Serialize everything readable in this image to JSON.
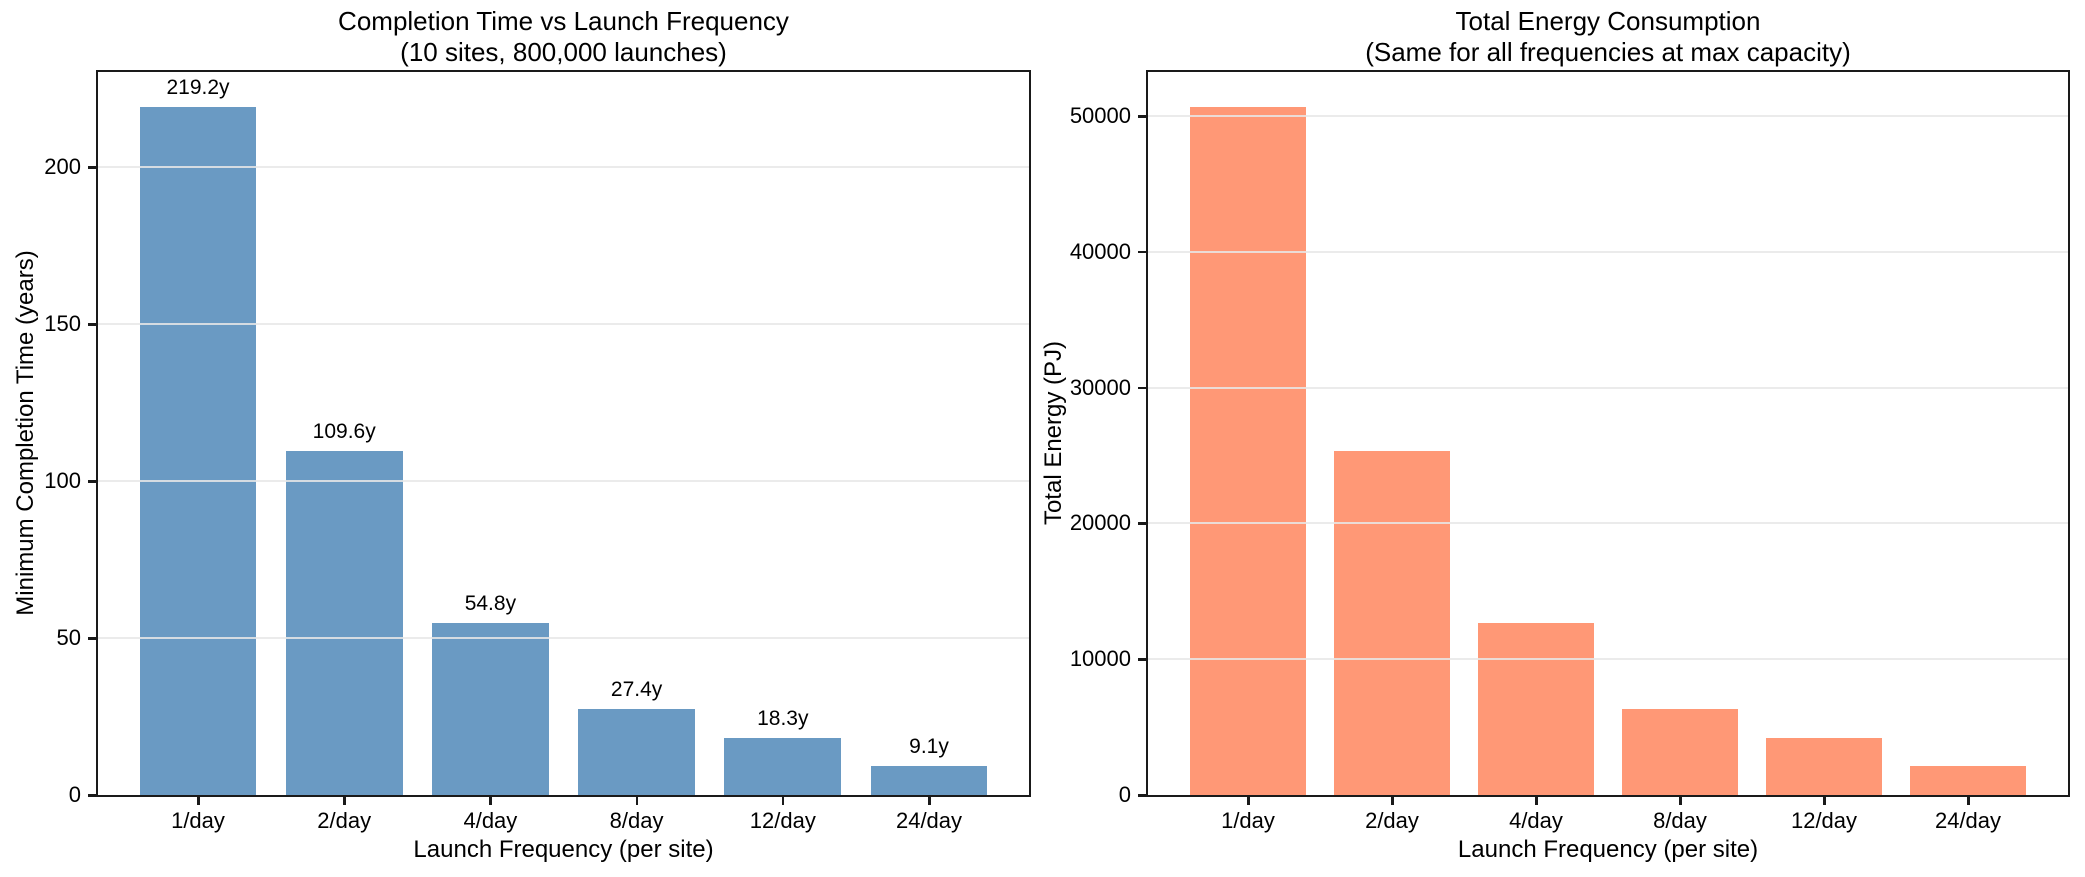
{
  "figure": {
    "background": "#ffffff",
    "spine_color": "#1a1a1a",
    "grid_color": "#e8e8e8"
  },
  "chart_data": [
    {
      "type": "bar",
      "title": "Completion Time vs Launch Frequency",
      "subtitle": "(10 sites, 800,000 launches)",
      "categories": [
        "1/day",
        "2/day",
        "4/day",
        "8/day",
        "12/day",
        "24/day"
      ],
      "values": [
        219.2,
        109.6,
        54.8,
        27.4,
        18.3,
        9.1
      ],
      "bar_value_labels": [
        "219.2y",
        "109.6y",
        "54.8y",
        "27.4y",
        "18.3y",
        "9.1y"
      ],
      "xlabel": "Launch Frequency (per site)",
      "ylabel": "Minimum Completion Time (years)",
      "yticks": [
        0,
        50,
        100,
        150,
        200
      ],
      "ytick_labels": [
        "0",
        "50",
        "100",
        "150",
        "200"
      ],
      "ylim": [
        0,
        230.4
      ],
      "bar_color": "#6a9ac3",
      "grid": true,
      "legend": "none"
    },
    {
      "type": "bar",
      "title": "Total Energy Consumption",
      "subtitle": "(Same for all frequencies at max capacity)",
      "categories": [
        "1/day",
        "2/day",
        "4/day",
        "8/day",
        "12/day",
        "24/day"
      ],
      "values": [
        50640,
        25320,
        12660,
        6330,
        4220,
        2110
      ],
      "bar_value_labels": [],
      "xlabel": "Launch Frequency (per site)",
      "ylabel": "Total Energy (PJ)",
      "yticks": [
        0,
        10000,
        20000,
        30000,
        40000,
        50000
      ],
      "ytick_labels": [
        "0",
        "10000",
        "20000",
        "30000",
        "40000",
        "50000"
      ],
      "ylim": [
        0,
        53250
      ],
      "bar_color": "#ff9876",
      "grid": true,
      "legend": "none"
    }
  ]
}
